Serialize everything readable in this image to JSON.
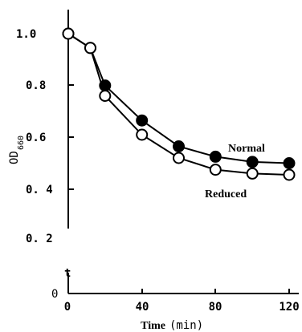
{
  "chart_data": {
    "type": "line",
    "xlabel": "Time",
    "xlabel_unit": "(min)",
    "ylabel": "OD",
    "ylabel_sub": "660",
    "x_ticks": [
      "0",
      "40",
      "80",
      "120"
    ],
    "y_ticks": [
      "1.0",
      "0.8",
      "0.6",
      "0. 4",
      "0. 2"
    ],
    "y_zero": "0",
    "axis_break_mark": "t",
    "xlim": [
      0,
      120
    ],
    "ylim": [
      0,
      1.0
    ],
    "grid": false,
    "series": [
      {
        "name": "Normal",
        "marker": "filled-circle",
        "x": [
          0,
          12,
          20,
          40,
          60,
          80,
          100,
          120
        ],
        "y": [
          1.0,
          0.945,
          0.8,
          0.665,
          0.565,
          0.525,
          0.505,
          0.5
        ]
      },
      {
        "name": "Reduced",
        "marker": "open-circle",
        "x": [
          0,
          12,
          20,
          40,
          60,
          80,
          100,
          120
        ],
        "y": [
          1.0,
          0.945,
          0.76,
          0.61,
          0.52,
          0.475,
          0.46,
          0.455
        ]
      }
    ]
  }
}
